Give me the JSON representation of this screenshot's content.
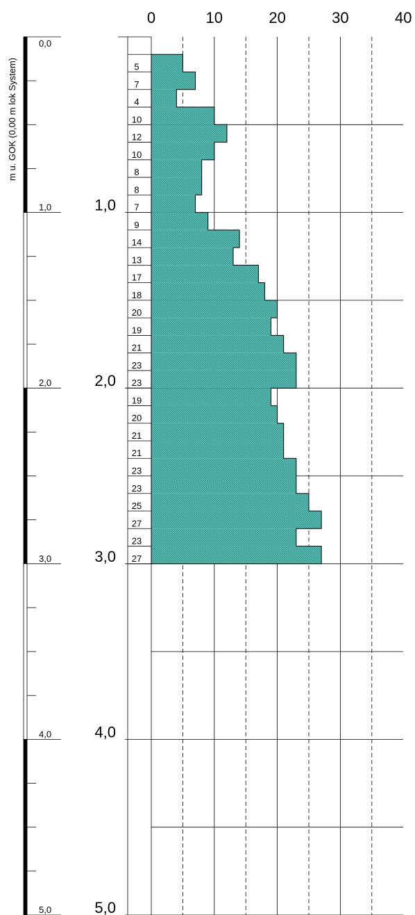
{
  "chart_data": {
    "type": "bar",
    "orientation": "horizontal-step",
    "scale_label": "m u. GOK (0,00 m lok System)",
    "x_ticks": [
      "0",
      "10",
      "20",
      "30",
      "40"
    ],
    "xlim": [
      0,
      40
    ],
    "depth_ticks": [
      "1,0",
      "2,0",
      "3,0",
      "4,0",
      "5,0"
    ],
    "scale_ticks": [
      "0,0",
      "1,0",
      "2,0",
      "3,0",
      "4,0",
      "5,0"
    ],
    "depth_range": [
      0,
      5
    ],
    "interval_m": 0.1,
    "start_depth_m": 0.1,
    "values": [
      5,
      7,
      4,
      10,
      12,
      10,
      8,
      8,
      7,
      9,
      14,
      13,
      17,
      18,
      20,
      19,
      21,
      23,
      23,
      19,
      20,
      21,
      21,
      23,
      23,
      25,
      27,
      23,
      27
    ],
    "fill_color": "#5bbdb4",
    "grid": true
  }
}
